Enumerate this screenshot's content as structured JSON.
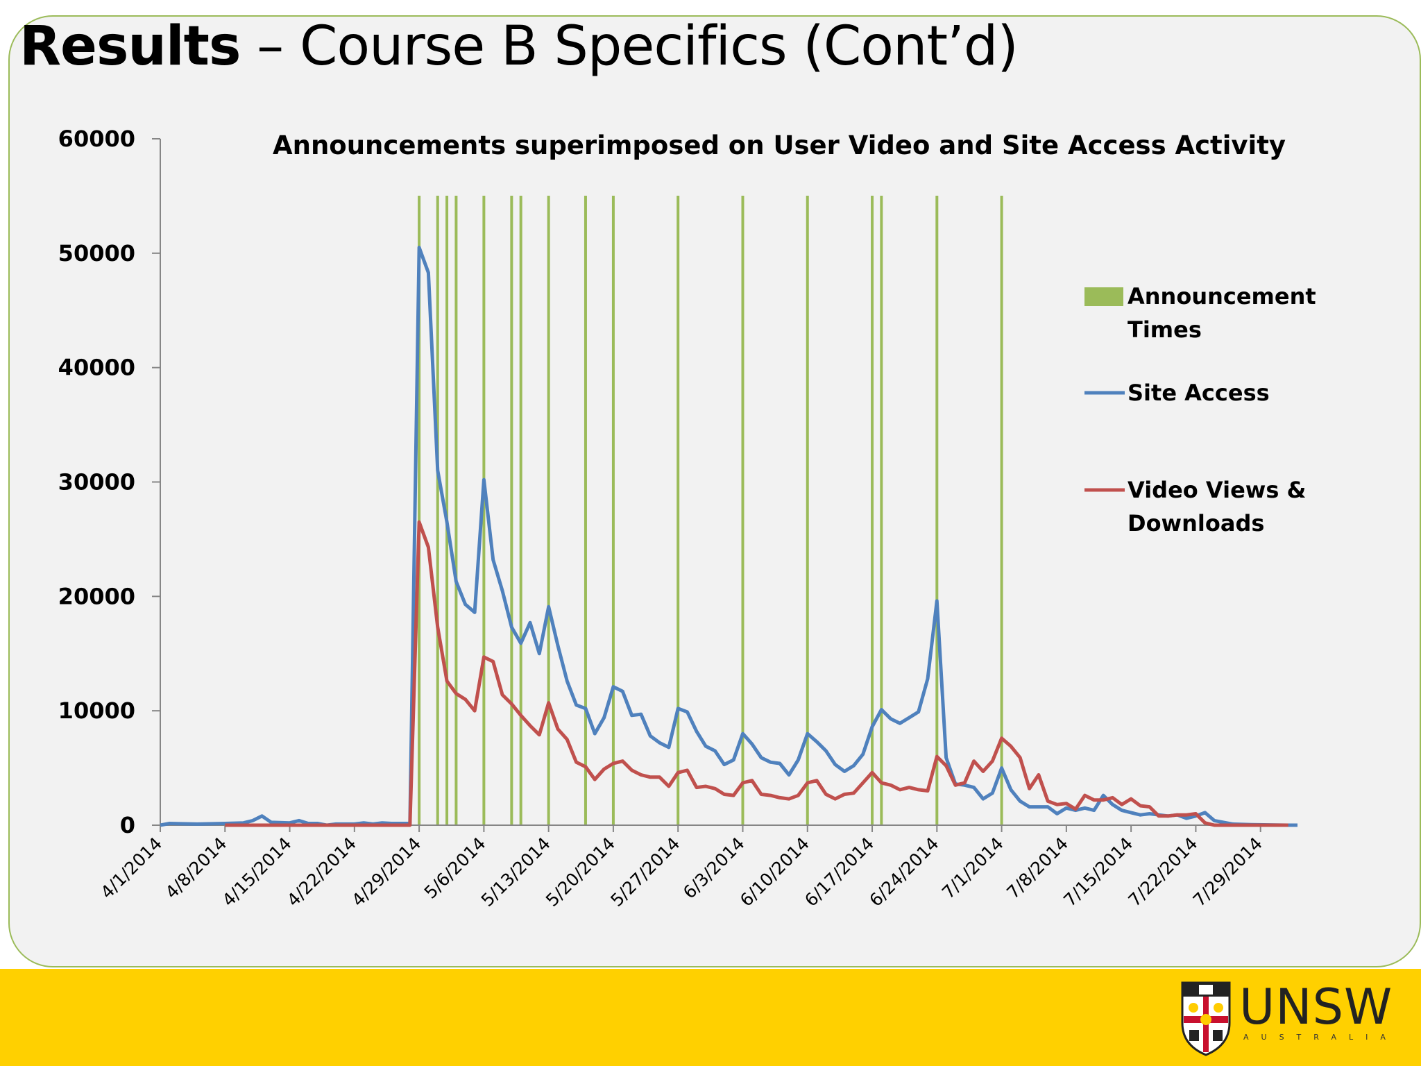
{
  "slide": {
    "title_bold": "Results",
    "title_rest": " – Course B Specifics (Cont’d)",
    "colors": {
      "border": "#9bbb59",
      "background": "#f2f2f2",
      "footer": "#ffd000"
    }
  },
  "logo": {
    "name": "UNSW",
    "subtitle": "AUSTRALIA",
    "crest_icon": "unsw-crest-icon"
  },
  "chart_data": {
    "type": "line",
    "title": "Announcements superimposed on User Video and Site Access Activity",
    "xlabel": "",
    "ylabel": "",
    "ylim": [
      0,
      60000
    ],
    "yticks": [
      0,
      10000,
      20000,
      30000,
      40000,
      50000,
      60000
    ],
    "x_start": "4/1/2014",
    "x_end": "8/2/2014",
    "xticks": [
      "4/1/2014",
      "4/8/2014",
      "4/15/2014",
      "4/22/2014",
      "4/29/2014",
      "5/6/2014",
      "5/13/2014",
      "5/20/2014",
      "5/27/2014",
      "6/3/2014",
      "6/10/2014",
      "6/17/2014",
      "6/24/2014",
      "7/1/2014",
      "7/8/2014",
      "7/15/2014",
      "7/22/2014",
      "7/29/2014"
    ],
    "grid": false,
    "legend_position": "right",
    "announcements": {
      "name": "Announcement Times",
      "color": "#9bbb59",
      "dates": [
        "4/29/2014",
        "5/1/2014",
        "5/2/2014",
        "5/3/2014",
        "5/6/2014",
        "5/9/2014",
        "5/10/2014",
        "5/13/2014",
        "5/17/2014",
        "5/20/2014",
        "5/27/2014",
        "6/3/2014",
        "6/10/2014",
        "6/17/2014",
        "6/18/2014",
        "6/24/2014",
        "7/1/2014"
      ]
    },
    "series": [
      {
        "name": "Site Access",
        "color": "#4f81bd",
        "x": [
          "4/1/2014",
          "4/2/2014",
          "4/5/2014",
          "4/8/2014",
          "4/10/2014",
          "4/11/2014",
          "4/12/2014",
          "4/13/2014",
          "4/15/2014",
          "4/16/2014",
          "4/17/2014",
          "4/18/2014",
          "4/19/2014",
          "4/20/2014",
          "4/22/2014",
          "4/23/2014",
          "4/24/2014",
          "4/25/2014",
          "4/26/2014",
          "4/28/2014",
          "4/29/2014",
          "4/30/2014",
          "5/1/2014",
          "5/2/2014",
          "5/3/2014",
          "5/4/2014",
          "5/5/2014",
          "5/6/2014",
          "5/7/2014",
          "5/8/2014",
          "5/9/2014",
          "5/10/2014",
          "5/11/2014",
          "5/12/2014",
          "5/13/2014",
          "5/14/2014",
          "5/15/2014",
          "5/16/2014",
          "5/17/2014",
          "5/18/2014",
          "5/19/2014",
          "5/20/2014",
          "5/21/2014",
          "5/22/2014",
          "5/23/2014",
          "5/24/2014",
          "5/25/2014",
          "5/26/2014",
          "5/27/2014",
          "5/28/2014",
          "5/29/2014",
          "5/30/2014",
          "5/31/2014",
          "6/1/2014",
          "6/2/2014",
          "6/3/2014",
          "6/4/2014",
          "6/5/2014",
          "6/6/2014",
          "6/7/2014",
          "6/8/2014",
          "6/9/2014",
          "6/10/2014",
          "6/11/2014",
          "6/12/2014",
          "6/13/2014",
          "6/14/2014",
          "6/15/2014",
          "6/16/2014",
          "6/17/2014",
          "6/18/2014",
          "6/19/2014",
          "6/20/2014",
          "6/21/2014",
          "6/22/2014",
          "6/23/2014",
          "6/24/2014",
          "6/25/2014",
          "6/26/2014",
          "6/27/2014",
          "6/28/2014",
          "6/29/2014",
          "6/30/2014",
          "7/1/2014",
          "7/2/2014",
          "7/3/2014",
          "7/4/2014",
          "7/5/2014",
          "7/6/2014",
          "7/7/2014",
          "7/8/2014",
          "7/9/2014",
          "7/10/2014",
          "7/11/2014",
          "7/12/2014",
          "7/13/2014",
          "7/14/2014",
          "7/15/2014",
          "7/16/2014",
          "7/17/2014",
          "7/18/2014",
          "7/19/2014",
          "7/20/2014",
          "7/21/2014",
          "7/22/2014",
          "7/23/2014",
          "7/24/2014",
          "7/26/2014",
          "7/28/2014",
          "8/1/2014",
          "8/2/2014"
        ],
        "values": [
          0,
          150,
          100,
          150,
          200,
          400,
          800,
          250,
          200,
          400,
          150,
          150,
          0,
          100,
          100,
          200,
          100,
          200,
          150,
          150,
          50500,
          48300,
          31000,
          26500,
          21300,
          19300,
          18600,
          30200,
          23200,
          20500,
          17300,
          15900,
          17700,
          15000,
          19100,
          15700,
          12600,
          10500,
          10200,
          8000,
          9400,
          12100,
          11700,
          9600,
          9700,
          7800,
          7200,
          6800,
          10200,
          9900,
          8200,
          6900,
          6500,
          5300,
          5700,
          8000,
          7100,
          5900,
          5500,
          5400,
          4400,
          5700,
          8000,
          7300,
          6500,
          5300,
          4700,
          5200,
          6200,
          8600,
          10100,
          9300,
          8900,
          9400,
          9900,
          12800,
          19600,
          5900,
          3600,
          3500,
          3300,
          2300,
          2800,
          5000,
          3100,
          2100,
          1600,
          1600,
          1600,
          1000,
          1500,
          1300,
          1500,
          1300,
          2600,
          1800,
          1300,
          1100,
          900,
          1000,
          900,
          800,
          900,
          600,
          800,
          1100,
          400,
          100,
          50,
          0,
          0
        ]
      },
      {
        "name": "Video Views & Downloads",
        "color": "#c0504d",
        "x": [
          "4/8/2014",
          "4/28/2014",
          "4/29/2014",
          "4/30/2014",
          "5/1/2014",
          "5/2/2014",
          "5/3/2014",
          "5/4/2014",
          "5/5/2014",
          "5/6/2014",
          "5/7/2014",
          "5/8/2014",
          "5/9/2014",
          "5/10/2014",
          "5/11/2014",
          "5/12/2014",
          "5/13/2014",
          "5/14/2014",
          "5/15/2014",
          "5/16/2014",
          "5/17/2014",
          "5/18/2014",
          "5/19/2014",
          "5/20/2014",
          "5/21/2014",
          "5/22/2014",
          "5/23/2014",
          "5/24/2014",
          "5/25/2014",
          "5/26/2014",
          "5/27/2014",
          "5/28/2014",
          "5/29/2014",
          "5/30/2014",
          "5/31/2014",
          "6/1/2014",
          "6/2/2014",
          "6/3/2014",
          "6/4/2014",
          "6/5/2014",
          "6/6/2014",
          "6/7/2014",
          "6/8/2014",
          "6/9/2014",
          "6/10/2014",
          "6/11/2014",
          "6/12/2014",
          "6/13/2014",
          "6/14/2014",
          "6/15/2014",
          "6/16/2014",
          "6/17/2014",
          "6/18/2014",
          "6/19/2014",
          "6/20/2014",
          "6/21/2014",
          "6/22/2014",
          "6/23/2014",
          "6/24/2014",
          "6/25/2014",
          "6/26/2014",
          "6/27/2014",
          "6/28/2014",
          "6/29/2014",
          "6/30/2014",
          "7/1/2014",
          "7/2/2014",
          "7/3/2014",
          "7/4/2014",
          "7/5/2014",
          "7/6/2014",
          "7/7/2014",
          "7/8/2014",
          "7/9/2014",
          "7/10/2014",
          "7/11/2014",
          "7/12/2014",
          "7/13/2014",
          "7/14/2014",
          "7/15/2014",
          "7/16/2014",
          "7/17/2014",
          "7/18/2014",
          "7/19/2014",
          "7/20/2014",
          "7/21/2014",
          "7/22/2014",
          "7/23/2014",
          "7/24/2014",
          "7/26/2014",
          "7/28/2014",
          "8/1/2014"
        ],
        "values": [
          0,
          0,
          26500,
          24300,
          17300,
          12600,
          11500,
          11000,
          10000,
          14700,
          14300,
          11400,
          10600,
          9600,
          8700,
          7900,
          10700,
          8400,
          7500,
          5500,
          5100,
          4000,
          4900,
          5400,
          5600,
          4800,
          4400,
          4200,
          4200,
          3400,
          4600,
          4800,
          3300,
          3400,
          3200,
          2700,
          2600,
          3700,
          3900,
          2700,
          2600,
          2400,
          2300,
          2600,
          3700,
          3900,
          2700,
          2300,
          2700,
          2800,
          3700,
          4600,
          3700,
          3500,
          3100,
          3300,
          3100,
          3000,
          6000,
          5200,
          3500,
          3700,
          5600,
          4700,
          5600,
          7600,
          6900,
          5900,
          3200,
          4400,
          2100,
          1800,
          1900,
          1400,
          2600,
          2200,
          2200,
          2400,
          1800,
          2300,
          1700,
          1600,
          800,
          800,
          900,
          900,
          1000,
          200,
          0,
          0,
          0,
          0
        ]
      }
    ]
  }
}
